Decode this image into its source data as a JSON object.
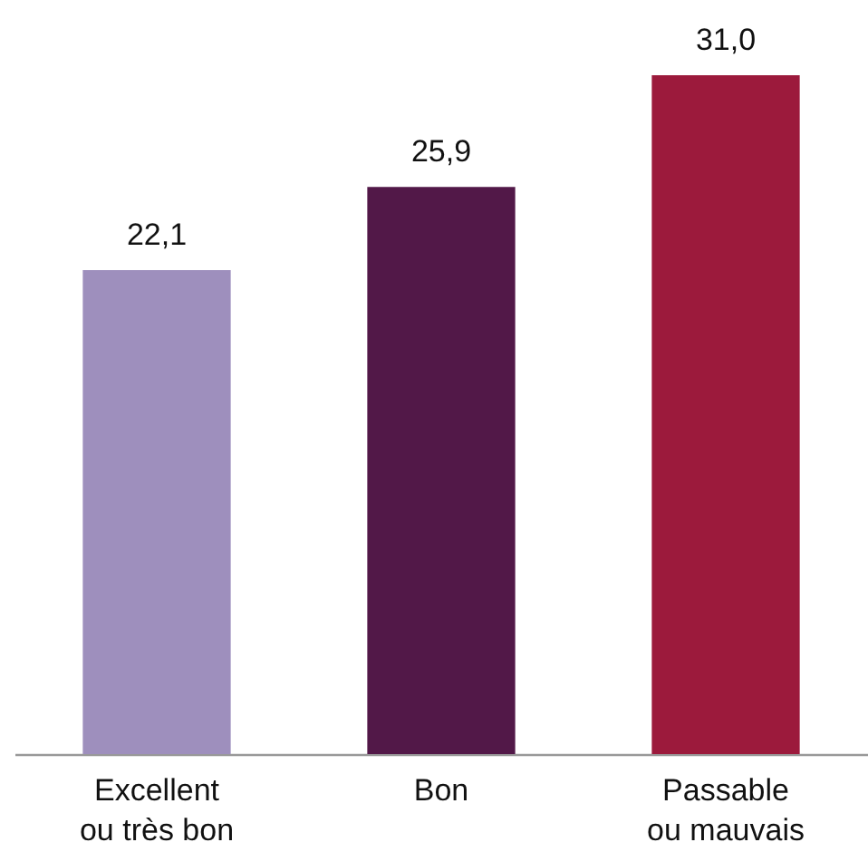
{
  "chart_data": {
    "type": "bar",
    "categories": [
      "Excellent\nou très bon",
      "Bon",
      "Passable\nou mauvais"
    ],
    "values": [
      22.1,
      25.9,
      31.0
    ],
    "colors": [
      "#9e8fbd",
      "#521848",
      "#9c1a3c"
    ],
    "value_labels": [
      "22,1",
      "25,9",
      "31,0"
    ]
  }
}
